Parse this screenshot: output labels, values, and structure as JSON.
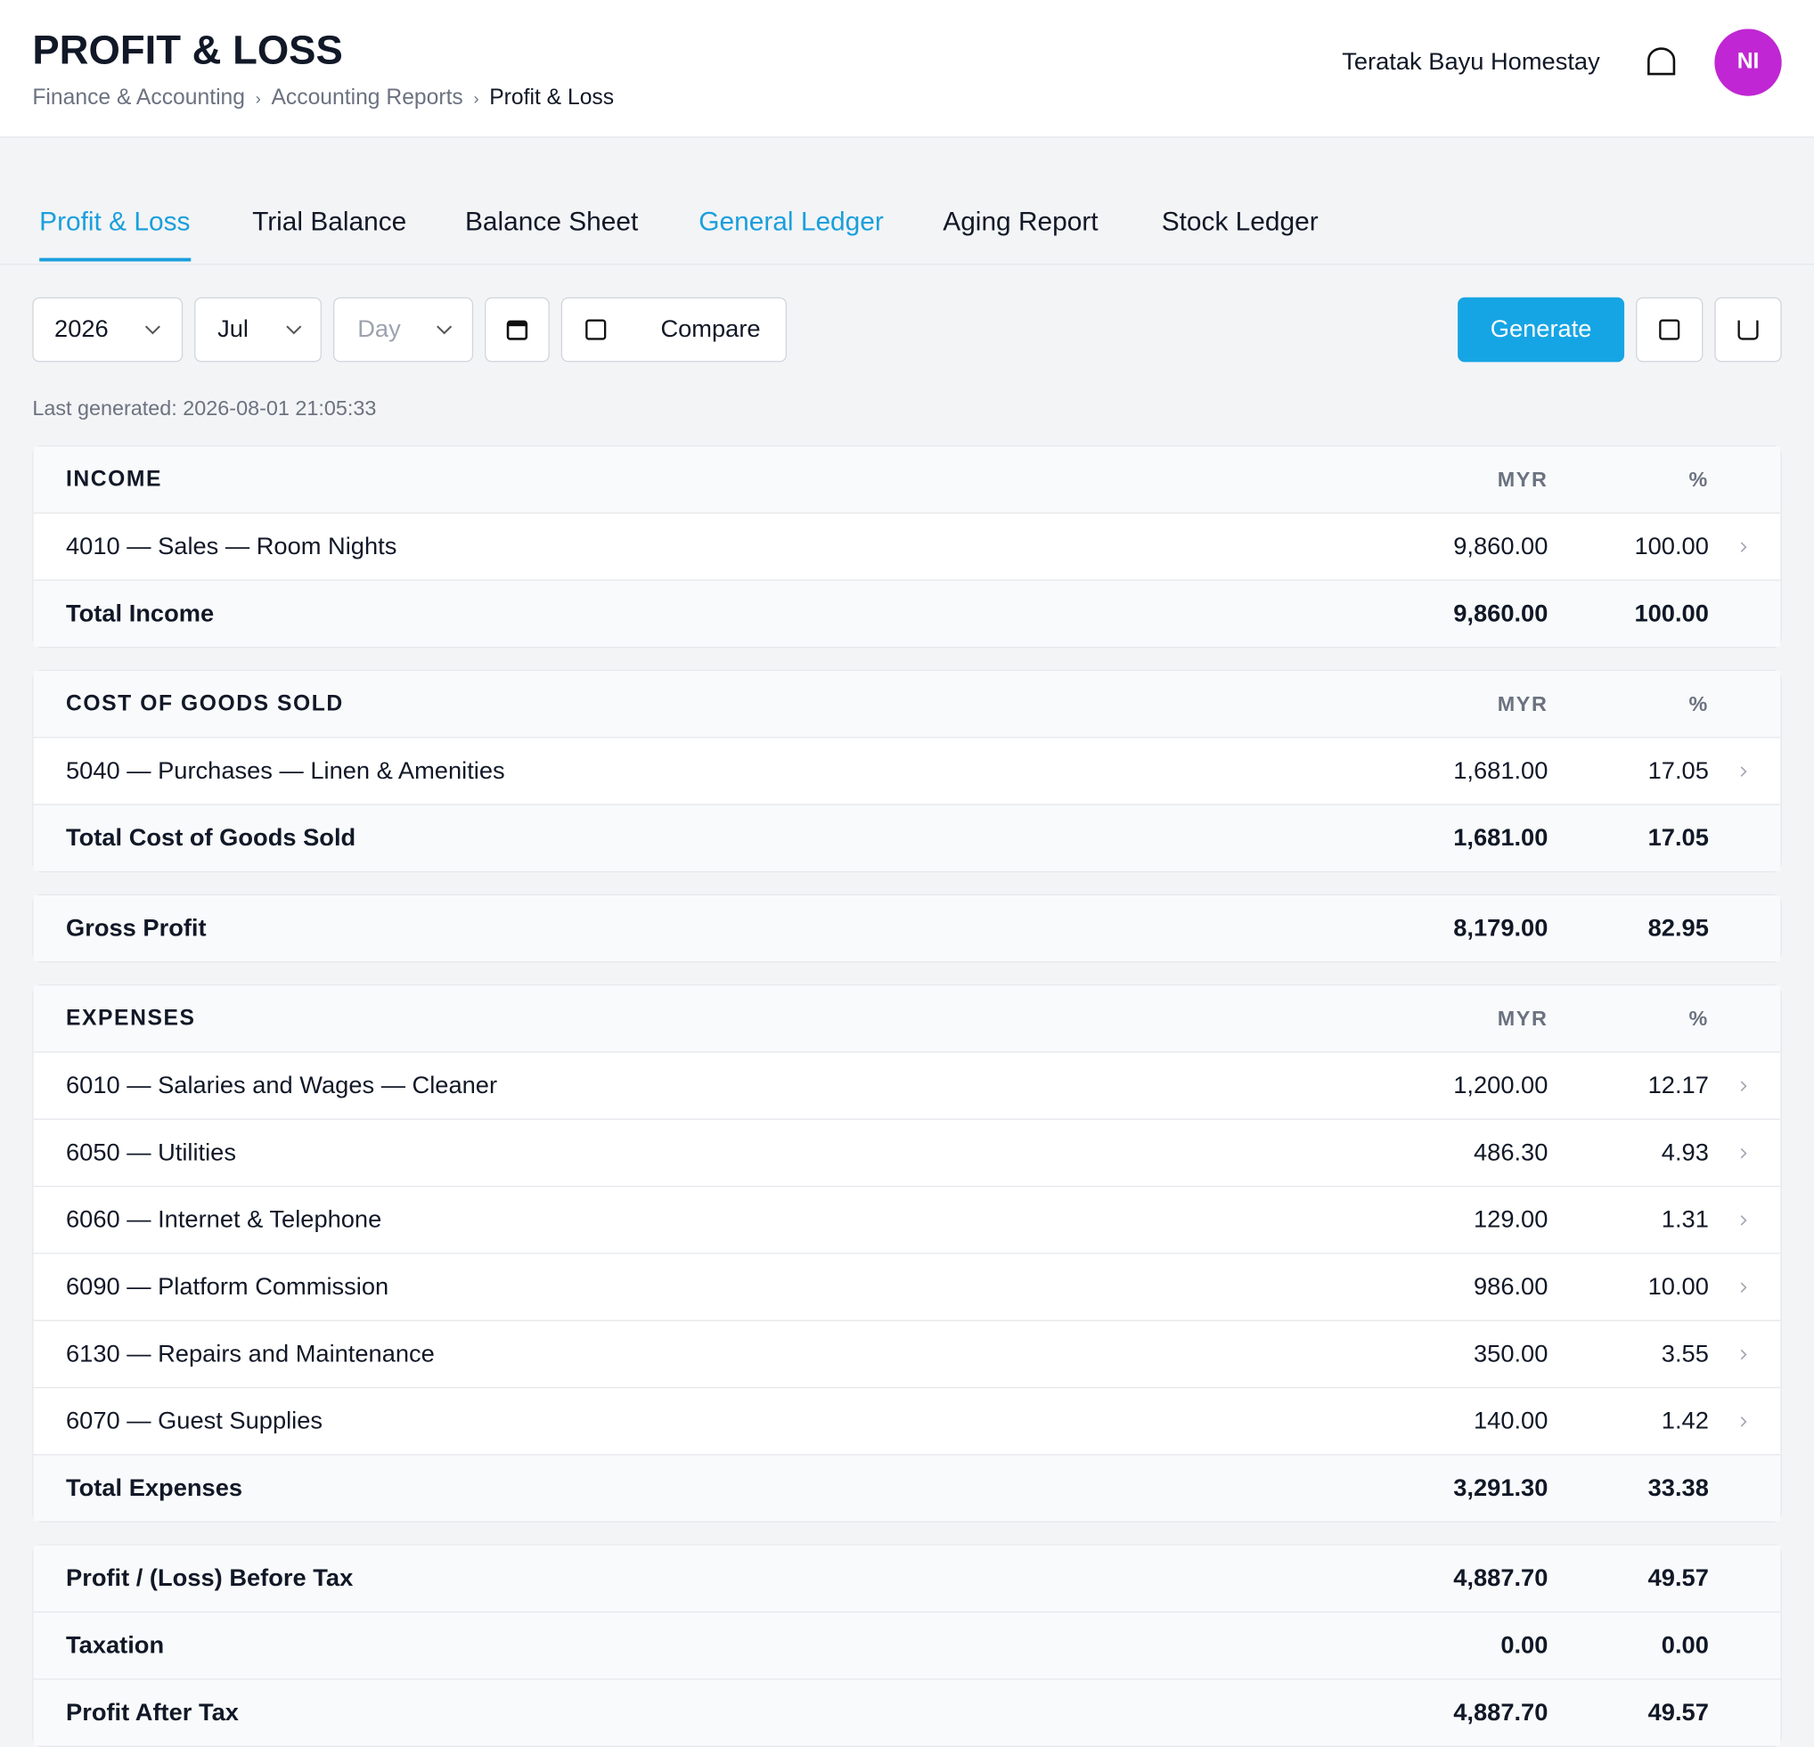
{
  "header": {
    "title": "PROFIT & LOSS",
    "breadcrumbs": [
      "Finance & Accounting",
      "Accounting Reports",
      "Profit & Loss"
    ],
    "organization": "Teratak Bayu Homestay",
    "avatar": "NI"
  },
  "tabs": [
    "Profit & Loss",
    "Trial Balance",
    "Balance Sheet",
    "General Ledger",
    "Aging Report",
    "Stock Ledger"
  ],
  "filters": {
    "year": "2026",
    "month": "Jul",
    "period": "Day",
    "compare": "Compare",
    "generate": "Generate",
    "last_generated": "Last generated: 2026-08-01 21:05:33"
  },
  "report": [
    {
      "heading": "INCOME",
      "currency": "MYR",
      "percent": "%",
      "rows": [
        {
          "label": "4010 — Sales — Room Nights",
          "amount": "9,860.00",
          "pct": "100.00"
        }
      ],
      "total": {
        "label": "Total Income",
        "amount": "9,860.00",
        "pct": "100.00"
      }
    },
    {
      "heading": "COST OF GOODS SOLD",
      "currency": "MYR",
      "percent": "%",
      "rows": [
        {
          "label": "5040 — Purchases — Linen & Amenities",
          "amount": "1,681.00",
          "pct": "17.05"
        }
      ],
      "total": {
        "label": "Total Cost of Goods Sold",
        "amount": "1,681.00",
        "pct": "17.05"
      }
    },
    {
      "summary": [
        {
          "label": "Gross Profit",
          "amount": "8,179.00",
          "pct": "82.95"
        }
      ]
    },
    {
      "heading": "EXPENSES",
      "currency": "MYR",
      "percent": "%",
      "rows": [
        {
          "label": "6010 — Salaries and Wages — Cleaner",
          "amount": "1,200.00",
          "pct": "12.17"
        },
        {
          "label": "6050 — Utilities",
          "amount": "486.30",
          "pct": "4.93"
        },
        {
          "label": "6060 — Internet & Telephone",
          "amount": "129.00",
          "pct": "1.31"
        },
        {
          "label": "6090 — Platform Commission",
          "amount": "986.00",
          "pct": "10.00"
        },
        {
          "label": "6130 — Repairs and Maintenance",
          "amount": "350.00",
          "pct": "3.55"
        },
        {
          "label": "6070 — Guest Supplies",
          "amount": "140.00",
          "pct": "1.42"
        }
      ],
      "total": {
        "label": "Total Expenses",
        "amount": "3,291.30",
        "pct": "33.38"
      }
    },
    {
      "summary": [
        {
          "label": "Profit / (Loss) Before Tax",
          "amount": "4,887.70",
          "pct": "49.57"
        },
        {
          "label": "Taxation",
          "amount": "0.00",
          "pct": "0.00"
        },
        {
          "label": "Profit After Tax",
          "amount": "4,887.70",
          "pct": "49.57"
        }
      ]
    }
  ]
}
